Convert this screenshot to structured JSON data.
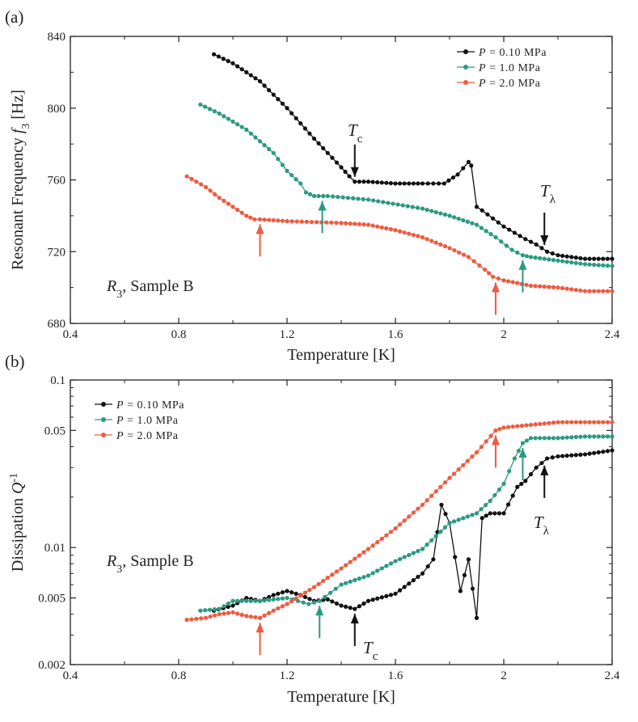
{
  "chart_data": [
    {
      "panel_label": "(a)",
      "type": "line",
      "xlabel": "Temperature [K]",
      "ylabel_main": "Resonant Frequency ",
      "ylabel_var": "f",
      "ylabel_sub": "3",
      "ylabel_unit": " [Hz]",
      "xlim": [
        0.4,
        2.4
      ],
      "ylim": [
        680,
        840
      ],
      "xticks": [
        0.4,
        0.8,
        1.2,
        1.6,
        2.0,
        2.4
      ],
      "xtick_labels": [
        "0.4",
        "0.8",
        "1.2",
        "1.6",
        "2",
        "2.4"
      ],
      "yticks": [
        680,
        720,
        760,
        800,
        840
      ],
      "ytick_labels": [
        "680",
        "720",
        "760",
        "800",
        "840"
      ],
      "scale": "linear",
      "annotation_var": "R",
      "annotation_sub": "3",
      "annotation_rest": ", Sample B",
      "series": [
        {
          "name_var": "P",
          "name_val": " = 0.10 MPa",
          "color": "#111111",
          "x": [
            0.93,
            1.0,
            1.1,
            1.2,
            1.3,
            1.35,
            1.4,
            1.43,
            1.45,
            1.5,
            1.6,
            1.7,
            1.78,
            1.83,
            1.87,
            1.88,
            1.9,
            1.92,
            2.0,
            2.08,
            2.12,
            2.16,
            2.2,
            2.3,
            2.4
          ],
          "y": [
            830,
            825,
            815,
            800,
            783,
            775,
            767,
            762,
            759,
            759,
            758,
            758,
            758,
            763,
            770,
            768,
            745,
            743,
            734,
            727,
            724,
            720,
            718,
            716,
            716
          ]
        },
        {
          "name_var": "P",
          "name_val": " = 1.0 MPa",
          "color": "#2a9a82",
          "x": [
            0.88,
            0.95,
            1.05,
            1.15,
            1.2,
            1.25,
            1.27,
            1.3,
            1.35,
            1.5,
            1.7,
            1.8,
            1.9,
            1.97,
            2.03,
            2.07,
            2.1,
            2.2,
            2.3,
            2.4
          ],
          "y": [
            802,
            797,
            788,
            775,
            765,
            758,
            753,
            751,
            751,
            749,
            744,
            740,
            735,
            728,
            721,
            718,
            717,
            715,
            713,
            712
          ]
        },
        {
          "name_var": "P",
          "name_val": " = 2.0 MPa",
          "color": "#f05a40",
          "x": [
            0.83,
            0.9,
            0.95,
            1.0,
            1.05,
            1.08,
            1.1,
            1.2,
            1.4,
            1.5,
            1.6,
            1.7,
            1.8,
            1.87,
            1.93,
            1.96,
            2.0,
            2.1,
            2.2,
            2.3,
            2.4
          ],
          "y": [
            762,
            756,
            750,
            745,
            740,
            738,
            738,
            737,
            736,
            735,
            732,
            728,
            722,
            717,
            710,
            706,
            704,
            701,
            700,
            698,
            698
          ]
        }
      ],
      "markers": [
        {
          "label_var": "T",
          "label_sub": "c",
          "x": 1.45,
          "color": "#111111",
          "dir": "down"
        },
        {
          "label_var": "T",
          "label_sub": "λ",
          "x": 2.15,
          "color": "#111111",
          "dir": "down"
        },
        {
          "x": 1.33,
          "color": "#2a9a82",
          "dir": "up"
        },
        {
          "x": 2.07,
          "color": "#2a9a82",
          "dir": "up"
        },
        {
          "x": 1.1,
          "color": "#f05a40",
          "dir": "up"
        },
        {
          "x": 1.97,
          "color": "#f05a40",
          "dir": "up"
        }
      ]
    },
    {
      "panel_label": "(b)",
      "type": "line",
      "xlabel": "Temperature [K]",
      "ylabel_main": "Dissipation ",
      "ylabel_var": "Q",
      "ylabel_sup": "-1",
      "xlim": [
        0.4,
        2.4
      ],
      "ylim": [
        0.002,
        0.1
      ],
      "scale": "log",
      "xticks": [
        0.4,
        0.8,
        1.2,
        1.6,
        2.0,
        2.4
      ],
      "xtick_labels": [
        "0.4",
        "0.8",
        "1.2",
        "1.6",
        "2",
        "2.4"
      ],
      "yticks": [
        0.002,
        0.005,
        0.01,
        0.05,
        0.1
      ],
      "ytick_labels": [
        "0.002",
        "0.005",
        "0.01",
        "0.05",
        "0.1"
      ],
      "annotation_var": "R",
      "annotation_sub": "3",
      "annotation_rest": ", Sample B",
      "series": [
        {
          "name_var": "P",
          "name_val": " = 0.10 MPa",
          "color": "#111111",
          "x": [
            0.93,
            1.0,
            1.05,
            1.1,
            1.15,
            1.2,
            1.25,
            1.3,
            1.35,
            1.4,
            1.45,
            1.5,
            1.6,
            1.7,
            1.74,
            1.77,
            1.8,
            1.84,
            1.87,
            1.9,
            1.92,
            1.95,
            2.0,
            2.05,
            2.08,
            2.12,
            2.16,
            2.2,
            2.3,
            2.4
          ],
          "y": [
            0.0042,
            0.0045,
            0.005,
            0.0048,
            0.0052,
            0.0055,
            0.0052,
            0.0048,
            0.0049,
            0.0045,
            0.0043,
            0.0048,
            0.0053,
            0.007,
            0.0085,
            0.018,
            0.014,
            0.0055,
            0.0085,
            0.0038,
            0.015,
            0.016,
            0.016,
            0.023,
            0.025,
            0.03,
            0.034,
            0.035,
            0.036,
            0.038
          ]
        },
        {
          "name_var": "P",
          "name_val": " = 1.0 MPa",
          "color": "#2a9a82",
          "x": [
            0.88,
            0.95,
            1.0,
            1.1,
            1.2,
            1.28,
            1.32,
            1.4,
            1.5,
            1.6,
            1.7,
            1.8,
            1.9,
            1.95,
            2.0,
            2.04,
            2.07,
            2.1,
            2.2,
            2.3,
            2.4
          ],
          "y": [
            0.0042,
            0.0043,
            0.0048,
            0.0048,
            0.005,
            0.0046,
            0.0048,
            0.006,
            0.0068,
            0.0083,
            0.0098,
            0.014,
            0.016,
            0.019,
            0.024,
            0.034,
            0.042,
            0.045,
            0.045,
            0.046,
            0.046
          ]
        },
        {
          "name_var": "P",
          "name_val": " = 2.0 MPa",
          "color": "#f05a40",
          "x": [
            0.83,
            0.9,
            0.95,
            1.0,
            1.05,
            1.1,
            1.15,
            1.2,
            1.3,
            1.4,
            1.5,
            1.6,
            1.7,
            1.8,
            1.9,
            1.97,
            2.0,
            2.1,
            2.2,
            2.3,
            2.4
          ],
          "y": [
            0.0037,
            0.0038,
            0.004,
            0.0041,
            0.0039,
            0.0038,
            0.0042,
            0.0046,
            0.0058,
            0.0075,
            0.0098,
            0.013,
            0.018,
            0.026,
            0.037,
            0.05,
            0.052,
            0.054,
            0.056,
            0.056,
            0.056
          ]
        }
      ],
      "markers": [
        {
          "label_var": "T",
          "label_sub": "c",
          "x": 1.45,
          "color": "#111111",
          "dir": "up"
        },
        {
          "label_var": "T",
          "label_sub": "λ",
          "x": 2.15,
          "color": "#111111",
          "dir": "up"
        },
        {
          "x": 1.32,
          "color": "#2a9a82",
          "dir": "up"
        },
        {
          "x": 2.07,
          "color": "#2a9a82",
          "dir": "up"
        },
        {
          "x": 1.1,
          "color": "#f05a40",
          "dir": "up"
        },
        {
          "x": 1.97,
          "color": "#f05a40",
          "dir": "up"
        }
      ]
    }
  ]
}
